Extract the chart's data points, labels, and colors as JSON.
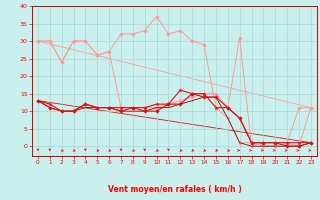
{
  "xlabel": "Vent moyen/en rafales ( km/h )",
  "xlim": [
    0,
    23
  ],
  "ylim": [
    0,
    40
  ],
  "xticks": [
    0,
    1,
    2,
    3,
    4,
    5,
    6,
    7,
    8,
    9,
    10,
    11,
    12,
    13,
    14,
    15,
    16,
    17,
    18,
    19,
    20,
    21,
    22,
    23
  ],
  "yticks": [
    0,
    5,
    10,
    15,
    20,
    25,
    30,
    35,
    40
  ],
  "bg_color": "#caf0ee",
  "grid_color": "#a8d8d8",
  "line_pink1_y": [
    30,
    30,
    24,
    30,
    30,
    26,
    27,
    11,
    11,
    11,
    11,
    12,
    13,
    14,
    15,
    15,
    11,
    31,
    0,
    1,
    1,
    1,
    0,
    11
  ],
  "line_pink2_y": [
    30,
    30,
    24,
    30,
    30,
    26,
    27,
    32,
    32,
    33,
    37,
    32,
    33,
    30,
    29,
    11,
    8,
    1,
    1,
    0,
    0,
    1,
    11,
    11
  ],
  "line_red1_y": [
    13,
    12,
    10,
    10,
    12,
    11,
    11,
    11,
    11,
    11,
    12,
    12,
    16,
    15,
    15,
    11,
    11,
    8,
    1,
    1,
    1,
    1,
    1,
    1
  ],
  "line_red2_y": [
    13,
    11,
    10,
    10,
    12,
    11,
    11,
    10,
    11,
    10,
    10,
    12,
    12,
    15,
    14,
    14,
    11,
    8,
    1,
    1,
    1,
    0,
    0,
    1
  ],
  "line_dkred_y": [
    13,
    11,
    10,
    10,
    11,
    11,
    11,
    10,
    10,
    10,
    11,
    11,
    12,
    13,
    14,
    14,
    8,
    1,
    0,
    0,
    0,
    0,
    0,
    1
  ],
  "trend_red_y0": 13,
  "trend_red_y1": 1,
  "trend_pink_y0": 30,
  "trend_pink_y1": 11,
  "pink_color": "#ff9999",
  "red_color": "#dd1111",
  "dkred_color": "#880000",
  "arrow_dirs": [
    180,
    180,
    225,
    225,
    180,
    225,
    225,
    180,
    225,
    180,
    225,
    180,
    225,
    225,
    225,
    225,
    225,
    270,
    270,
    270,
    270,
    270,
    270,
    270
  ]
}
